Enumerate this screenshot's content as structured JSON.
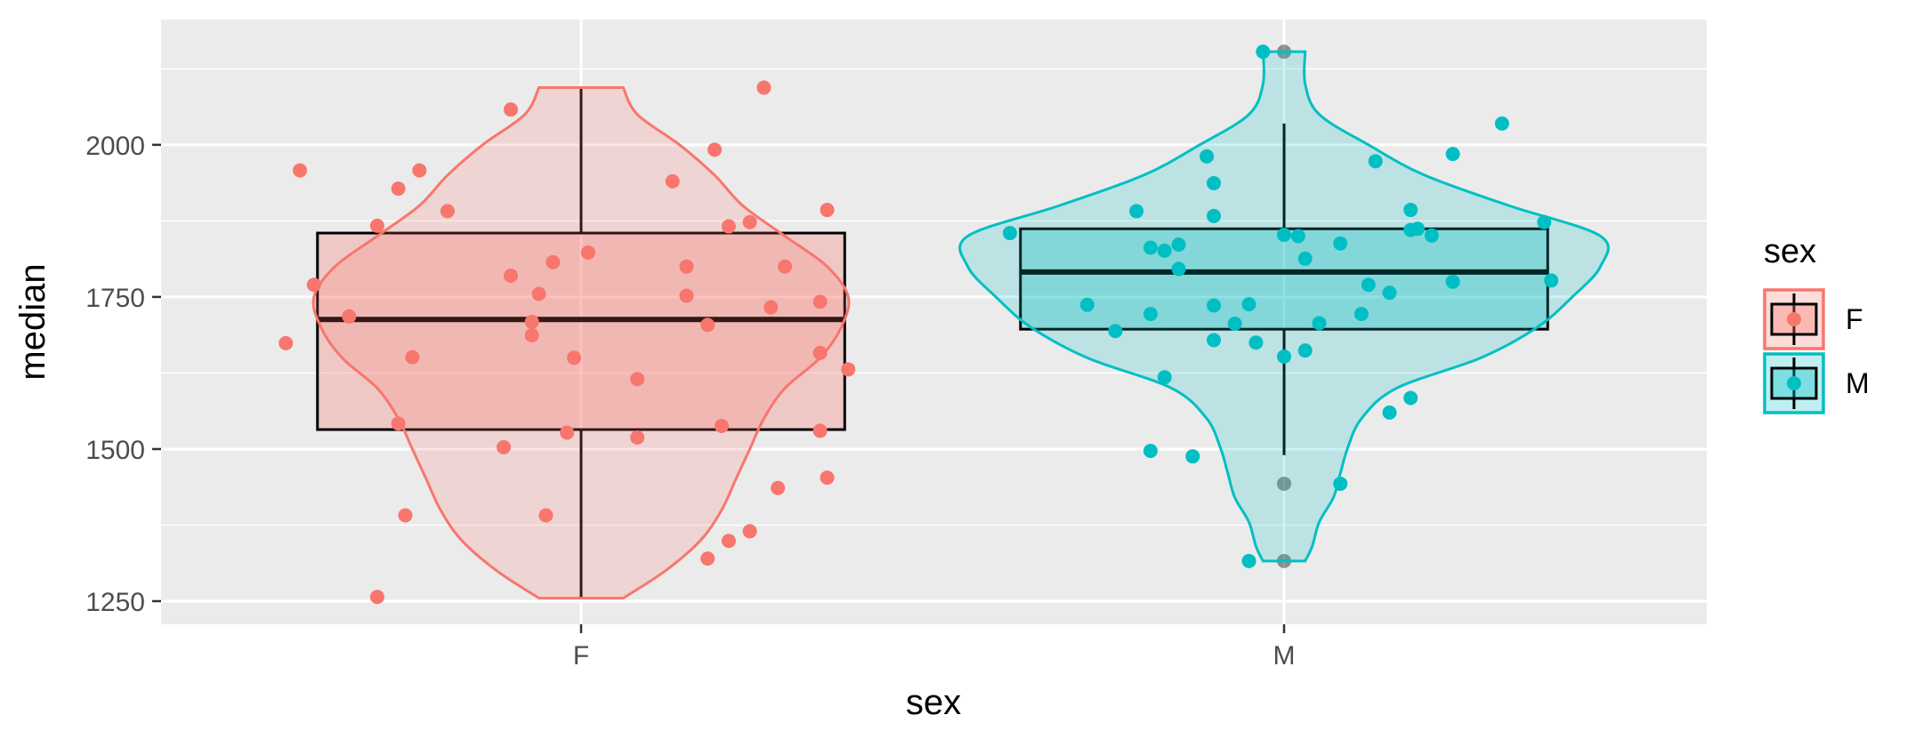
{
  "chart_data": {
    "type": "violin+box+jitter",
    "xlabel": "sex",
    "ylabel": "median",
    "categories": [
      "F",
      "M"
    ],
    "y_ticks": [
      1250,
      1500,
      1750,
      2000
    ],
    "ylim": [
      1210,
      2200
    ],
    "grid": true,
    "legend": {
      "title": "sex",
      "position": "right",
      "entries": [
        "F",
        "M"
      ]
    },
    "colors": {
      "F": "#F8766D",
      "M": "#00BFC4",
      "panel": "#EBEBEB",
      "grid": "#FFFFFF"
    },
    "series": [
      {
        "name": "F",
        "box": {
          "lower_whisker": 1255,
          "q1": 1532,
          "median": 1713,
          "q3": 1855,
          "upper_whisker": 2094,
          "half_width": 0.375
        },
        "violin": {
          "y": [
            1255,
            1300,
            1350,
            1400,
            1450,
            1500,
            1550,
            1600,
            1650,
            1700,
            1750,
            1800,
            1850,
            1900,
            1950,
            2000,
            2050,
            2094
          ],
          "half_width": [
            0.06,
            0.12,
            0.17,
            0.2,
            0.22,
            0.24,
            0.26,
            0.29,
            0.34,
            0.37,
            0.38,
            0.35,
            0.29,
            0.23,
            0.19,
            0.14,
            0.08,
            0.06
          ]
        },
        "points": [
          [
            -0.4,
            1958
          ],
          [
            -0.38,
            1770
          ],
          [
            -0.33,
            1718
          ],
          [
            -0.29,
            1867
          ],
          [
            -0.26,
            1928
          ],
          [
            -0.23,
            1958
          ],
          [
            -0.19,
            1891
          ],
          [
            -0.1,
            2058
          ],
          [
            -0.04,
            1807
          ],
          [
            0.01,
            1823
          ],
          [
            0.13,
            1940
          ],
          [
            0.19,
            1992
          ],
          [
            0.21,
            1866
          ],
          [
            0.24,
            1873
          ],
          [
            0.29,
            1800
          ],
          [
            0.35,
            1893
          ],
          [
            -0.1,
            1785
          ],
          [
            -0.07,
            1709
          ],
          [
            -0.07,
            1687
          ],
          [
            -0.06,
            1755
          ],
          [
            -0.01,
            1650
          ],
          [
            0.15,
            1800
          ],
          [
            0.15,
            1752
          ],
          [
            0.18,
            1704
          ],
          [
            0.27,
            1733
          ],
          [
            0.34,
            1742
          ],
          [
            0.34,
            1658
          ],
          [
            0.38,
            1631
          ],
          [
            0.08,
            1615
          ],
          [
            -0.42,
            1674
          ],
          [
            -0.24,
            1651
          ],
          [
            -0.26,
            1542
          ],
          [
            -0.02,
            1527
          ],
          [
            0.08,
            1519
          ],
          [
            0.2,
            1538
          ],
          [
            -0.11,
            1503
          ],
          [
            0.34,
            1530
          ],
          [
            0.35,
            1453
          ],
          [
            0.28,
            1436
          ],
          [
            -0.25,
            1391
          ],
          [
            -0.05,
            1391
          ],
          [
            0.24,
            1365
          ],
          [
            0.21,
            1349
          ],
          [
            0.18,
            1320
          ],
          [
            -0.29,
            1257
          ],
          [
            0.26,
            2094
          ]
        ]
      },
      {
        "name": "M",
        "box": {
          "lower_whisker": 1490,
          "q1": 1697,
          "median": 1791,
          "q3": 1862,
          "upper_whisker": 2035,
          "half_width": 0.375
        },
        "outliers": [
          1316,
          1443,
          2153
        ],
        "violin": {
          "y": [
            1316,
            1340,
            1380,
            1420,
            1460,
            1500,
            1550,
            1600,
            1650,
            1700,
            1750,
            1800,
            1850,
            1900,
            1950,
            2000,
            2050,
            2100,
            2153
          ],
          "half_width": [
            0.03,
            0.04,
            0.05,
            0.07,
            0.08,
            0.09,
            0.11,
            0.16,
            0.28,
            0.36,
            0.41,
            0.45,
            0.45,
            0.32,
            0.2,
            0.12,
            0.05,
            0.03,
            0.03
          ]
        },
        "points": [
          [
            -0.03,
            2153
          ],
          [
            -0.39,
            1855
          ],
          [
            -0.21,
            1891
          ],
          [
            -0.19,
            1831
          ],
          [
            -0.17,
            1826
          ],
          [
            -0.15,
            1836
          ],
          [
            -0.15,
            1796
          ],
          [
            -0.11,
            1981
          ],
          [
            -0.1,
            1937
          ],
          [
            -0.1,
            1883
          ],
          [
            0.0,
            1852
          ],
          [
            0.02,
            1850
          ],
          [
            0.03,
            1813
          ],
          [
            0.08,
            1838
          ],
          [
            0.13,
            1973
          ],
          [
            0.18,
            1893
          ],
          [
            0.18,
            1860
          ],
          [
            0.19,
            1862
          ],
          [
            0.21,
            1851
          ],
          [
            0.24,
            1985
          ],
          [
            0.31,
            2035
          ],
          [
            0.37,
            1873
          ],
          [
            0.38,
            1777
          ],
          [
            0.24,
            1775
          ],
          [
            0.12,
            1770
          ],
          [
            0.15,
            1757
          ],
          [
            0.11,
            1722
          ],
          [
            -0.28,
            1737
          ],
          [
            -0.24,
            1694
          ],
          [
            -0.19,
            1722
          ],
          [
            -0.1,
            1736
          ],
          [
            -0.05,
            1738
          ],
          [
            -0.07,
            1706
          ],
          [
            -0.1,
            1679
          ],
          [
            -0.04,
            1675
          ],
          [
            0.05,
            1707
          ],
          [
            0.0,
            1652
          ],
          [
            0.03,
            1662
          ],
          [
            -0.17,
            1618
          ],
          [
            0.18,
            1584
          ],
          [
            0.15,
            1560
          ],
          [
            -0.19,
            1497
          ],
          [
            -0.13,
            1488
          ],
          [
            0.08,
            1443
          ],
          [
            -0.05,
            1316
          ]
        ]
      }
    ]
  }
}
